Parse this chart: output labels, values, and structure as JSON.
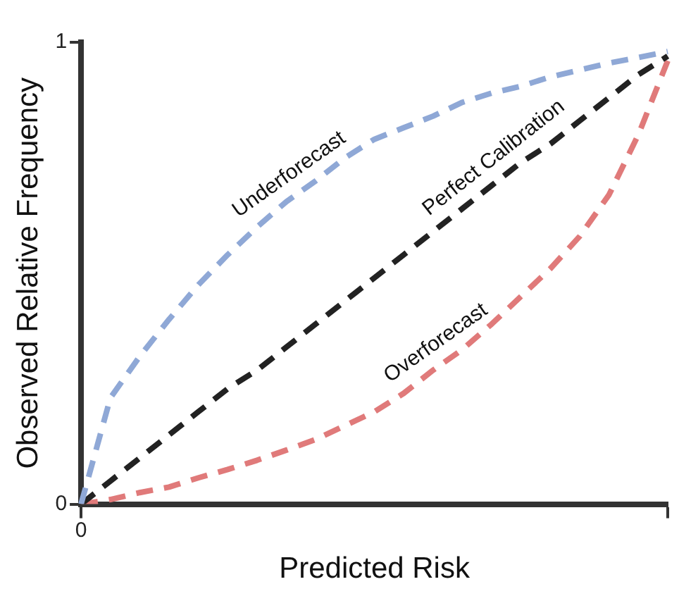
{
  "chart_data": {
    "type": "line",
    "xlabel": "Predicted Risk",
    "ylabel": "Observed Relative Frequency",
    "categories": [
      "0",
      null,
      null,
      null,
      null,
      null,
      null,
      null,
      null,
      null,
      null,
      null,
      null,
      null,
      null,
      null,
      null,
      null,
      null,
      null,
      null
    ],
    "ylim": [
      0,
      1
    ],
    "yticks": [
      0,
      1
    ],
    "grid": false,
    "legend": false,
    "marker": "none",
    "line_style": "dashed",
    "series": [
      {
        "name": "Underforecast",
        "color": "#8fa8d6",
        "values": [
          0,
          0.23,
          0.32,
          0.4,
          0.475,
          0.54,
          0.6,
          0.655,
          0.7,
          0.75,
          0.79,
          0.815,
          0.84,
          0.87,
          0.89,
          0.905,
          0.925,
          0.94,
          0.955,
          0.967,
          0.98
        ]
      },
      {
        "name": "Perfect Calibration",
        "color": "#222222",
        "values": [
          0,
          0.05,
          0.1,
          0.15,
          0.2,
          0.25,
          0.29,
          0.34,
          0.39,
          0.44,
          0.49,
          0.54,
          0.59,
          0.64,
          0.69,
          0.74,
          0.78,
          0.83,
          0.88,
          0.93,
          0.97
        ]
      },
      {
        "name": "Overforecast",
        "color": "#e07a7a",
        "values": [
          0,
          0.01,
          0.025,
          0.037,
          0.057,
          0.075,
          0.095,
          0.117,
          0.14,
          0.17,
          0.2,
          0.24,
          0.29,
          0.335,
          0.39,
          0.45,
          0.51,
          0.58,
          0.67,
          0.8,
          0.96
        ]
      }
    ]
  }
}
